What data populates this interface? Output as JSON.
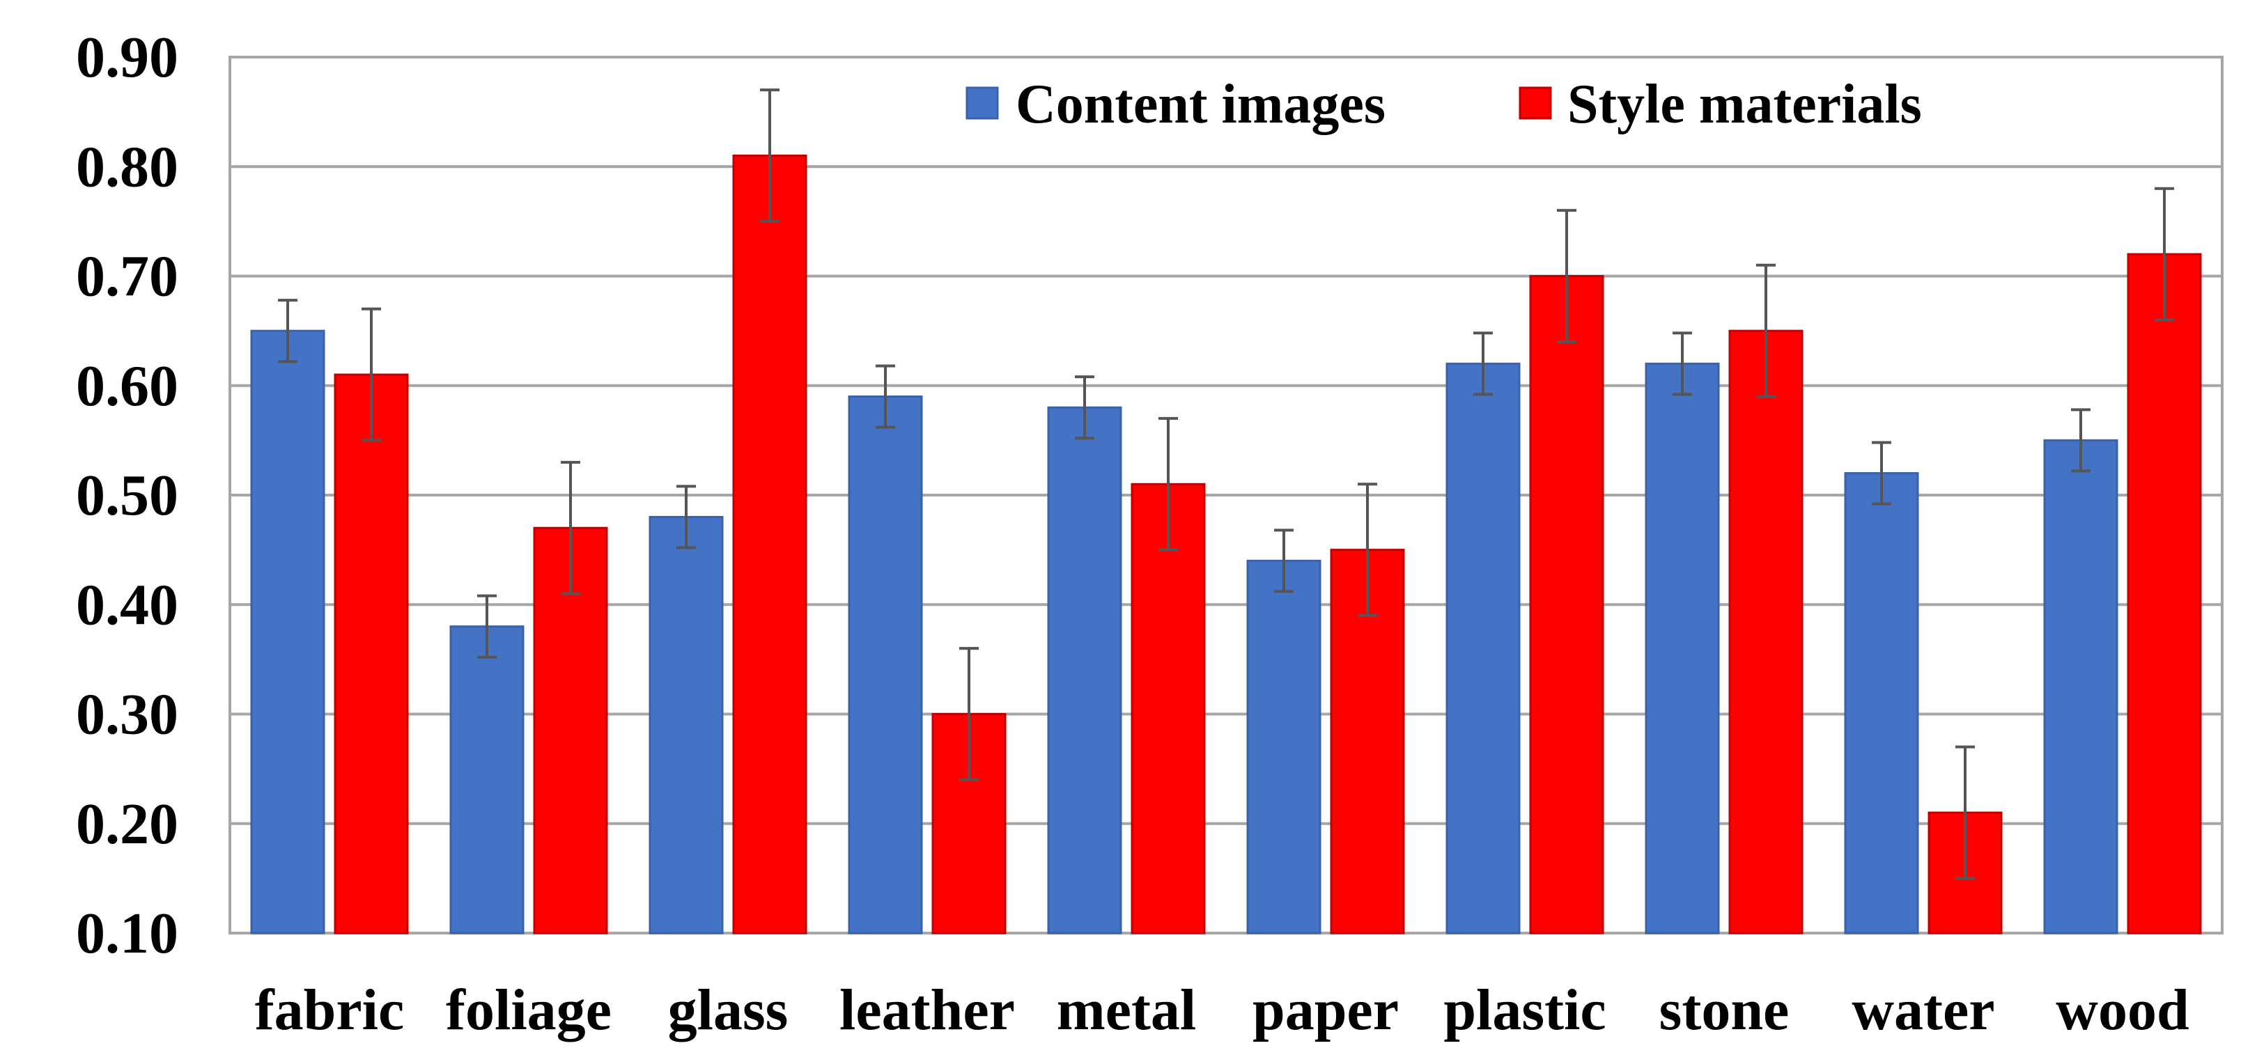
{
  "chart_data": {
    "type": "bar",
    "categories": [
      "fabric",
      "foliage",
      "glass",
      "leather",
      "metal",
      "paper",
      "plastic",
      "stone",
      "water",
      "wood"
    ],
    "series": [
      {
        "name": "Content images",
        "color": "#4472C4",
        "values": [
          0.65,
          0.38,
          0.48,
          0.59,
          0.58,
          0.44,
          0.62,
          0.62,
          0.52,
          0.55
        ],
        "error": [
          0.028,
          0.028,
          0.028,
          0.028,
          0.028,
          0.028,
          0.028,
          0.028,
          0.028,
          0.028
        ]
      },
      {
        "name": "Style materials",
        "color": "#FF0000",
        "values": [
          0.61,
          0.47,
          0.81,
          0.3,
          0.51,
          0.45,
          0.7,
          0.65,
          0.21,
          0.72
        ],
        "error": [
          0.06,
          0.06,
          0.06,
          0.06,
          0.06,
          0.06,
          0.06,
          0.06,
          0.06,
          0.06
        ]
      }
    ],
    "ylim": [
      0.1,
      0.9
    ],
    "yticks": [
      "0.10",
      "0.20",
      "0.30",
      "0.40",
      "0.50",
      "0.60",
      "0.70",
      "0.80",
      "0.90"
    ],
    "title": "",
    "xlabel": "",
    "ylabel": "",
    "grid": true,
    "legend": "top-right",
    "error_bar_color": "#555555",
    "grid_color": "#A6A6A6"
  }
}
